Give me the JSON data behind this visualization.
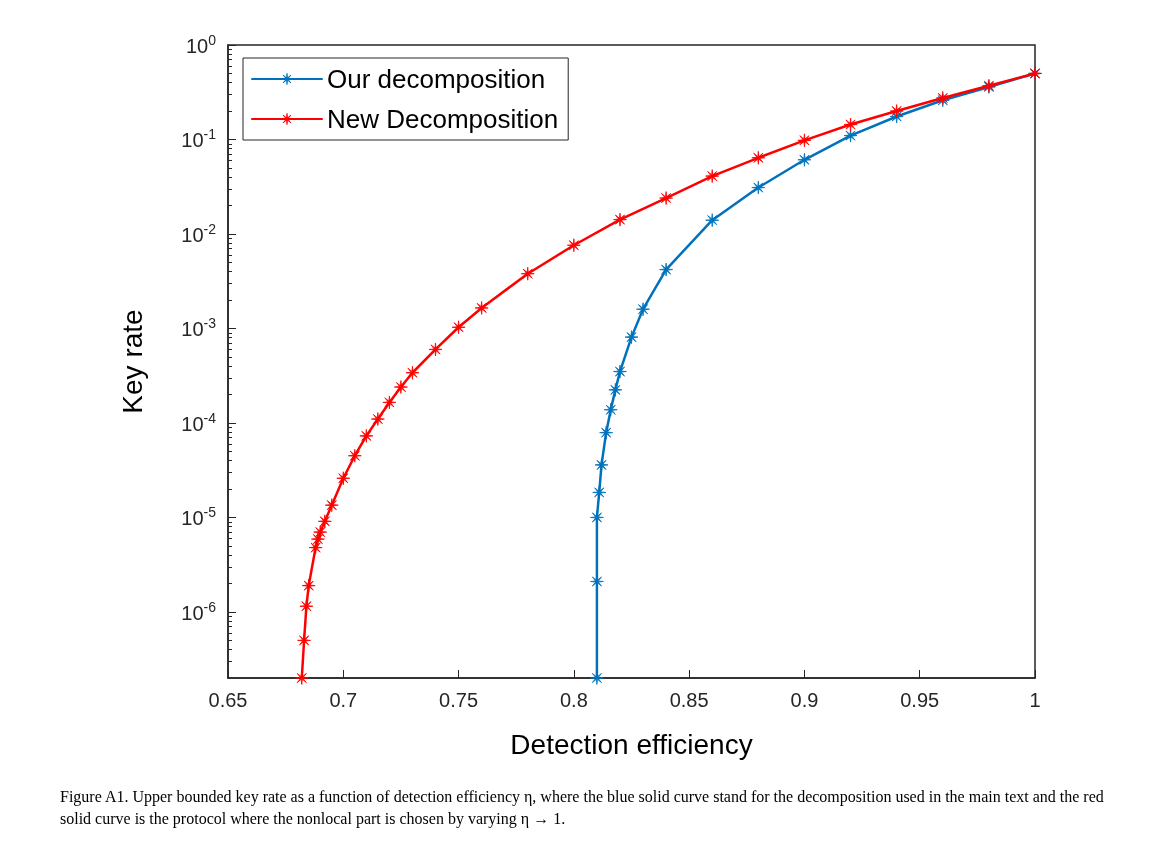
{
  "chart_data": {
    "type": "line",
    "xlabel": "Detection efficiency",
    "ylabel": "Key rate",
    "log": "y",
    "grid": false,
    "legend": "top left",
    "marker": "star",
    "line_style": "solid",
    "xlim": [
      0.65,
      1
    ],
    "xticks": [
      0.65,
      0.7,
      0.75,
      0.8,
      0.85,
      0.9,
      0.95,
      1
    ],
    "ylim": [
      2e-07,
      1
    ],
    "yticks": [
      {
        "value": 1e-06,
        "label": "10$^{-6}$"
      },
      {
        "value": 1e-05,
        "label": "10$^{-5}$"
      },
      {
        "value": 0.0001,
        "label": "10$^{-4}$"
      },
      {
        "value": 0.001,
        "label": "10$^{-3}$"
      },
      {
        "value": 0.01,
        "label": "10$^{-2}$"
      },
      {
        "value": 0.1,
        "label": "10$^{-1}$"
      },
      {
        "value": 1,
        "label": "10$^{0}$"
      }
    ],
    "series": [
      {
        "name": "Our decomposition",
        "color": "#0072bd",
        "x": [
          0.81,
          0.81,
          0.81,
          0.811,
          0.812,
          0.814,
          0.816,
          0.818,
          0.82,
          0.825,
          0.83,
          0.84,
          0.86,
          0.88,
          0.9,
          0.92,
          0.94,
          0.96,
          0.98,
          1
        ],
        "values": [
          2e-07,
          2.1e-06,
          1e-05,
          1.84e-05,
          3.6e-05,
          7.9e-05,
          0.000138,
          0.000224,
          0.00035,
          0.00081,
          0.0016,
          0.0042,
          0.014,
          0.031,
          0.061,
          0.11,
          0.175,
          0.26,
          0.36,
          0.5
        ]
      },
      {
        "name": "New Decomposition",
        "color": "#ff0000",
        "x": [
          0.682,
          0.683,
          0.684,
          0.685,
          0.688,
          0.689,
          0.69,
          0.692,
          0.695,
          0.7,
          0.705,
          0.71,
          0.715,
          0.72,
          0.725,
          0.73,
          0.74,
          0.75,
          0.76,
          0.78,
          0.8,
          0.82,
          0.84,
          0.86,
          0.88,
          0.9,
          0.92,
          0.94,
          0.96,
          0.98,
          1
        ],
        "values": [
          2e-07,
          5e-07,
          1.15e-06,
          1.9e-06,
          4.8e-06,
          5.9e-06,
          7e-06,
          9.1e-06,
          1.35e-05,
          2.6e-05,
          4.5e-05,
          7.3e-05,
          0.00011,
          0.000165,
          0.00024,
          0.00034,
          0.0006,
          0.00103,
          0.00165,
          0.0038,
          0.0076,
          0.0142,
          0.024,
          0.041,
          0.064,
          0.098,
          0.144,
          0.2,
          0.275,
          0.37,
          0.5
        ]
      }
    ],
    "annotations": [
      "Figure A1. Upper bounded key rate as a function of detection efficiency η, where the blue solid curve stand for the decomposition used in the main text and the red solid curve is the protocol where the nonlocal part is chosen by varying η → 1."
    ]
  }
}
